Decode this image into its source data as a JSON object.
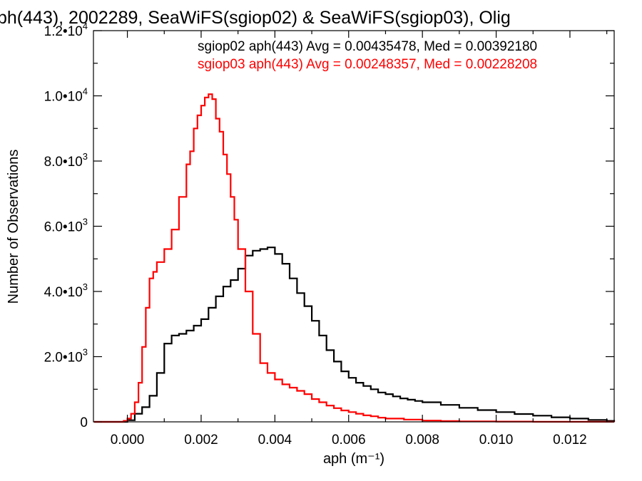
{
  "chart_data": {
    "type": "line",
    "title": "ph(443), 2002289, SeaWiFS(sgiop02) & SeaWiFS(sgiop03), Olig",
    "xlabel": "aph (m⁻¹)",
    "ylabel": "Number of Observations",
    "xlim": [
      -0.00092,
      0.0132
    ],
    "ylim": [
      0,
      12000
    ],
    "step": true,
    "grid": false,
    "legend_placement": "top-right",
    "x_ticks": [
      0,
      0.002,
      0.004,
      0.006,
      0.008,
      0.01,
      0.012
    ],
    "x_tick_labels": [
      "0.000",
      "0.002",
      "0.004",
      "0.006",
      "0.008",
      "0.010",
      "0.012"
    ],
    "y_ticks": [
      0,
      2000,
      4000,
      6000,
      8000,
      10000,
      12000
    ],
    "y_tick_labels": [
      {
        "mant": "0",
        "exp": ""
      },
      {
        "mant": "2.0•10",
        "exp": "3"
      },
      {
        "mant": "4.0•10",
        "exp": "3"
      },
      {
        "mant": "6.0•10",
        "exp": "3"
      },
      {
        "mant": "8.0•10",
        "exp": "3"
      },
      {
        "mant": "1.0•10",
        "exp": "4"
      },
      {
        "mant": "1.2•10",
        "exp": "4"
      }
    ],
    "legend": [
      "sgiop02 aph(443) Avg = 0.00435478, Med = 0.00392180",
      "sgiop03 aph(443) Avg = 0.00248357, Med = 0.00228208"
    ],
    "series": [
      {
        "color": "#000000",
        "x": [
          -0.0009,
          -0.0002,
          0.0,
          0.0002,
          0.0004,
          0.0006,
          0.0008,
          0.001,
          0.0012,
          0.0014,
          0.0016,
          0.0018,
          0.002,
          0.0022,
          0.0024,
          0.0026,
          0.0028,
          0.003,
          0.0032,
          0.0034,
          0.0036,
          0.0038,
          0.004,
          0.0042,
          0.0044,
          0.0046,
          0.0048,
          0.005,
          0.0052,
          0.0054,
          0.0056,
          0.0058,
          0.006,
          0.0062,
          0.0064,
          0.0066,
          0.0068,
          0.007,
          0.0072,
          0.0074,
          0.0076,
          0.0078,
          0.008,
          0.0085,
          0.009,
          0.0095,
          0.01,
          0.0105,
          0.011,
          0.0115,
          0.012,
          0.0125,
          0.013,
          0.0132
        ],
        "y": [
          0,
          0,
          50,
          250,
          450,
          800,
          1500,
          2400,
          2650,
          2700,
          2800,
          2950,
          3150,
          3500,
          3850,
          4150,
          4350,
          4700,
          5100,
          5250,
          5300,
          5350,
          5150,
          4850,
          4400,
          3950,
          3550,
          3100,
          2650,
          2200,
          1850,
          1550,
          1350,
          1200,
          1100,
          1000,
          900,
          850,
          780,
          720,
          680,
          640,
          600,
          520,
          430,
          360,
          300,
          240,
          190,
          140,
          100,
          60,
          30,
          10
        ]
      },
      {
        "color": "#ff0000",
        "x": [
          -0.0009,
          -0.0002,
          -0.0001,
          0.0,
          0.0001,
          0.0002,
          0.0003,
          0.0004,
          0.0005,
          0.0006,
          0.0007,
          0.0008,
          0.001,
          0.0012,
          0.0014,
          0.0016,
          0.0017,
          0.0018,
          0.0019,
          0.002,
          0.0021,
          0.0022,
          0.0023,
          0.0024,
          0.0025,
          0.0026,
          0.0027,
          0.0028,
          0.0029,
          0.003,
          0.0032,
          0.0034,
          0.0036,
          0.0038,
          0.004,
          0.0042,
          0.0044,
          0.0046,
          0.0048,
          0.005,
          0.0052,
          0.0054,
          0.0056,
          0.0058,
          0.006,
          0.0062,
          0.0064,
          0.0066,
          0.0068,
          0.007,
          0.0075,
          0.008,
          0.0085,
          0.009,
          0.01,
          0.011,
          0.0132
        ],
        "y": [
          0,
          0,
          30,
          100,
          250,
          600,
          1200,
          2300,
          3500,
          4400,
          4600,
          4900,
          5300,
          5900,
          6900,
          7900,
          8300,
          9000,
          9400,
          9700,
          9950,
          10050,
          9900,
          9300,
          8900,
          8200,
          7600,
          6900,
          6200,
          5300,
          4000,
          2700,
          1800,
          1500,
          1300,
          1150,
          1050,
          950,
          850,
          700,
          600,
          500,
          420,
          350,
          300,
          250,
          200,
          170,
          130,
          100,
          70,
          40,
          25,
          15,
          8,
          3,
          0
        ]
      }
    ]
  }
}
